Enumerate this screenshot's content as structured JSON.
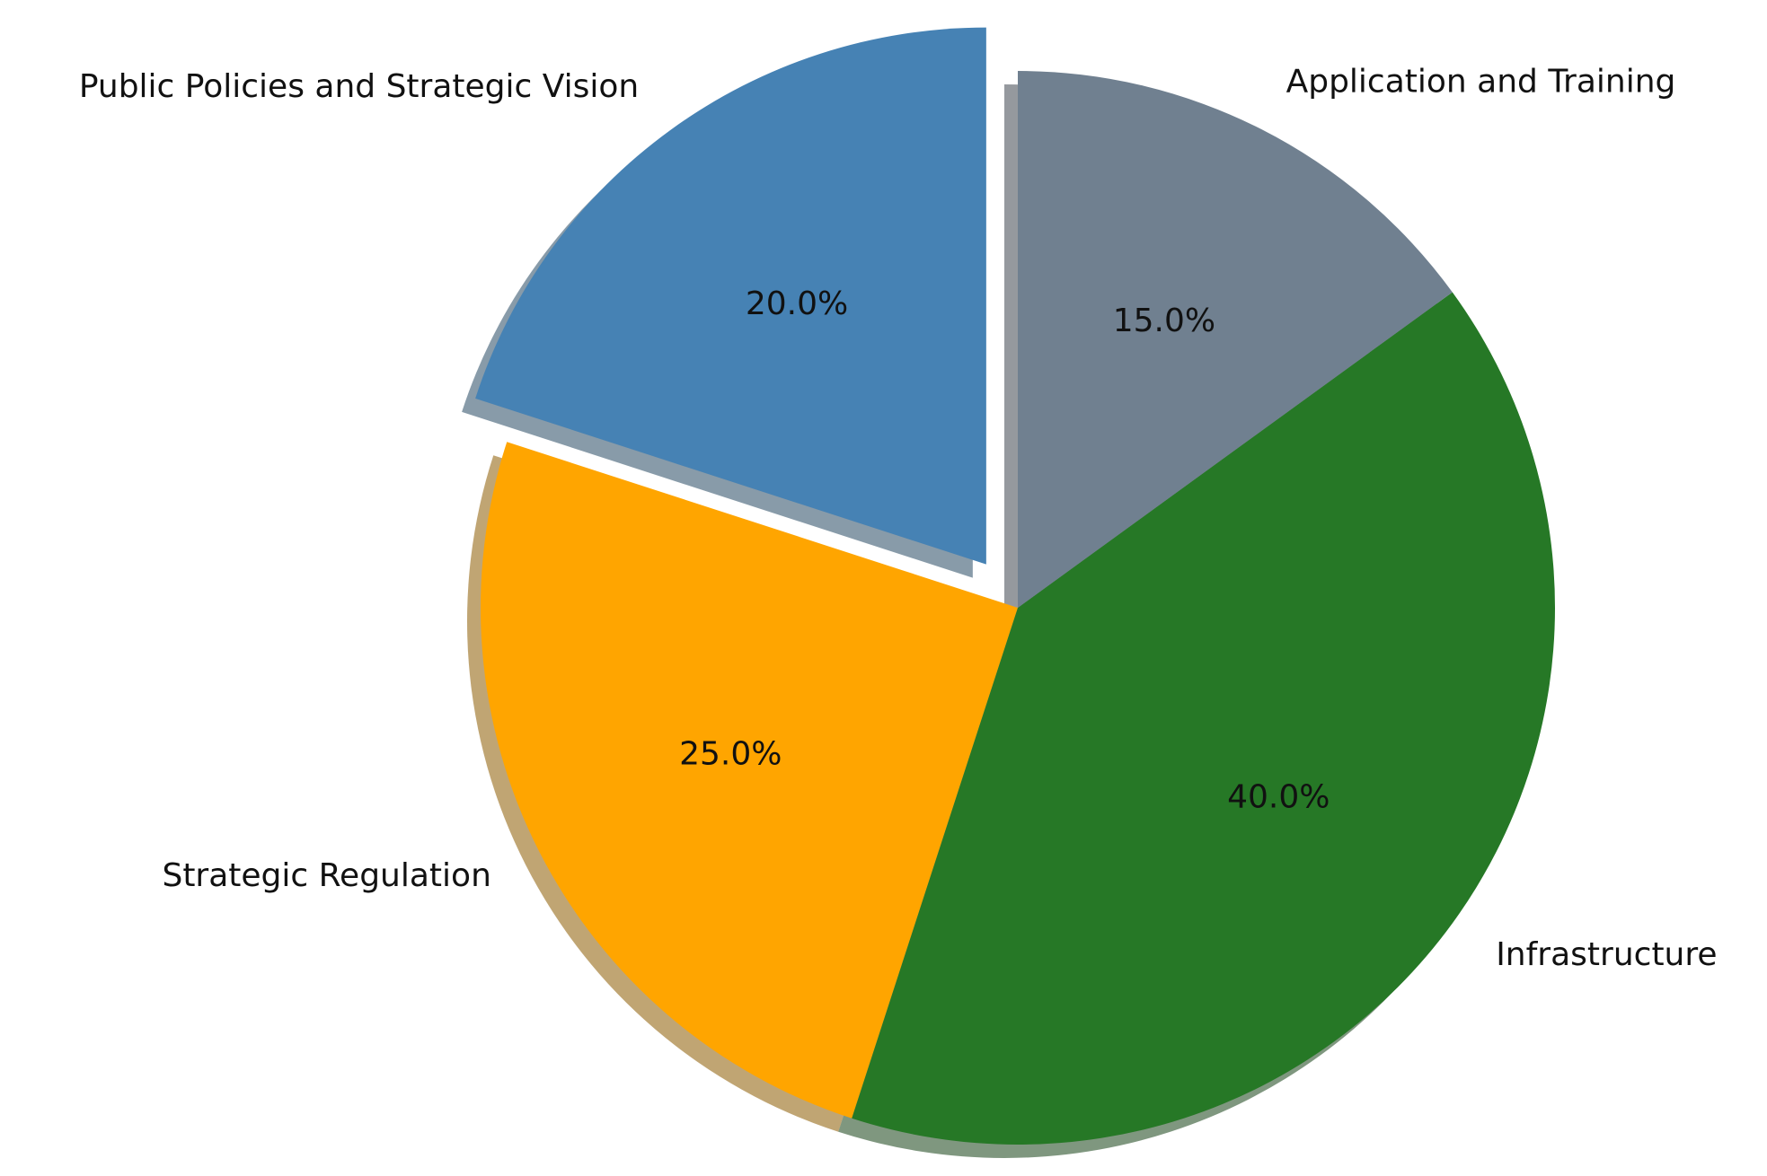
{
  "chart_data": {
    "type": "pie",
    "title": "",
    "slices": [
      {
        "label": "Public Policies and Strategic Vision",
        "value": 20.0,
        "percent_label": "20.0%",
        "color": "#4682B4",
        "exploded": true
      },
      {
        "label": "Strategic Regulation",
        "value": 25.0,
        "percent_label": "25.0%",
        "color": "#FFA500",
        "exploded": false
      },
      {
        "label": "Infrastructure",
        "value": 40.0,
        "percent_label": "40.0%",
        "color": "#267826",
        "exploded": false
      },
      {
        "label": "Application and Training",
        "value": 15.0,
        "percent_label": "15.0%",
        "color": "#708090",
        "exploded": false
      }
    ],
    "start_angle_deg": 90,
    "direction": "counterclockwise",
    "shadow": true
  }
}
